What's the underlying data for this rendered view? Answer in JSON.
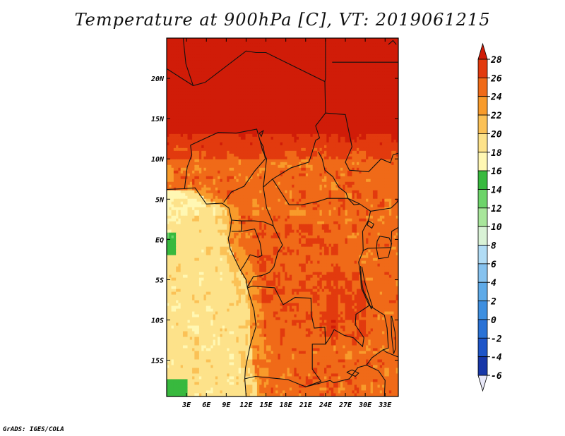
{
  "chart_data": {
    "type": "heatmap",
    "title": "Temperature at 900hPa [C], VT: 2019061215",
    "variable": "Temperature at 900hPa",
    "units": "C",
    "valid_time": "2019061215",
    "x_ticks": [
      "3E",
      "6E",
      "9E",
      "12E",
      "15E",
      "18E",
      "21E",
      "24E",
      "27E",
      "30E",
      "33E"
    ],
    "y_ticks": [
      "20N",
      "15N",
      "10N",
      "5N",
      "EQ",
      "5S",
      "10S",
      "15S"
    ],
    "x_tick_values": [
      3,
      6,
      9,
      12,
      15,
      18,
      21,
      24,
      27,
      30,
      33
    ],
    "y_tick_values": [
      20,
      15,
      10,
      5,
      0,
      -5,
      -10,
      -15
    ],
    "lon_range": [
      0,
      35
    ],
    "lat_range": [
      -19.5,
      25
    ],
    "colorbar": {
      "levels": [
        -6,
        -4,
        -2,
        0,
        2,
        4,
        6,
        8,
        10,
        12,
        14,
        16,
        18,
        20,
        22,
        24,
        26,
        28
      ],
      "labels": [
        "-6",
        "-4",
        "-2",
        "0",
        "2",
        "4",
        "6",
        "8",
        "10",
        "12",
        "14",
        "16",
        "18",
        "20",
        "22",
        "24",
        "26",
        "28"
      ],
      "colors": [
        "#0a1466",
        "#1737a8",
        "#1e55c8",
        "#2a72d6",
        "#3e8fe0",
        "#5eaae8",
        "#86c2ef",
        "#b1dcf5",
        "#d9f2d6",
        "#a8e69b",
        "#6dd46a",
        "#38b93e",
        "#fff7b3",
        "#fde28a",
        "#fbc156",
        "#f89b2b",
        "#f06a18",
        "#e23a0e",
        "#d01c08"
      ]
    },
    "fields": {
      "sahel_north": 28,
      "transition_band": 26,
      "central_basin": 25,
      "angola_interior": 25,
      "atlantic_offshore": 19,
      "gulf_of_guinea": 18,
      "cool_atlantic_south": 15
    }
  },
  "footer": {
    "credit": "GrADS: IGES/COLA"
  },
  "accent": {
    "frame": "#000000",
    "border": "#111111"
  }
}
